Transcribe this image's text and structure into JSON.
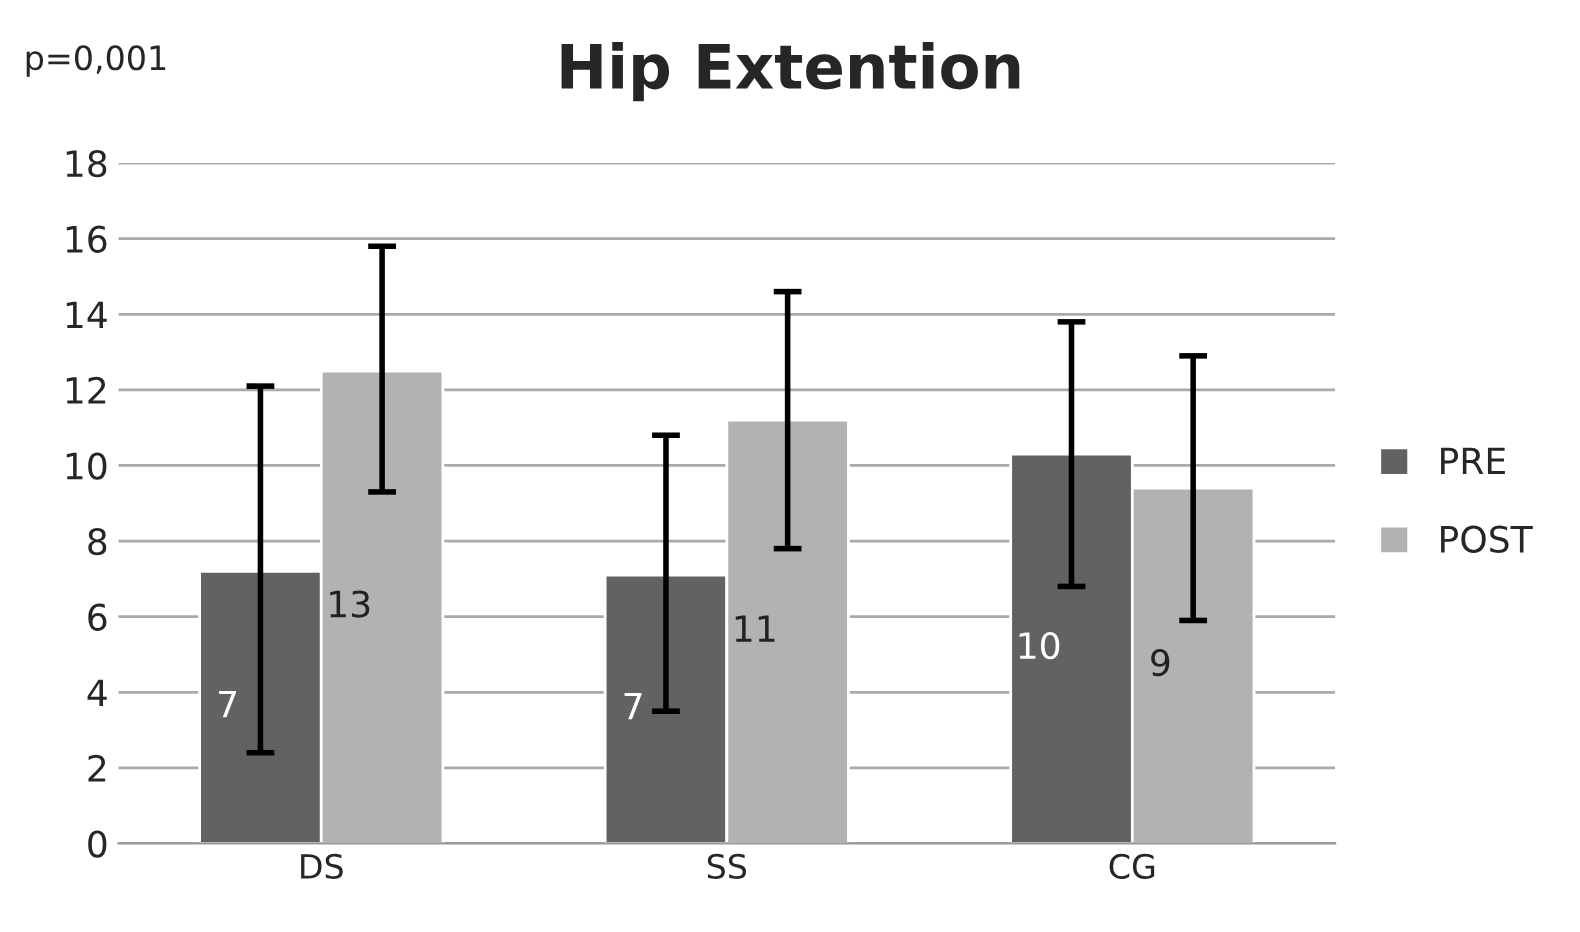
{
  "chart_data": {
    "type": "bar",
    "title": "Hip Extention",
    "annotations": [
      "p=0,001"
    ],
    "categories": [
      "DS",
      "SS",
      "CG"
    ],
    "series": [
      {
        "name": "PRE",
        "color": "#626262",
        "values": [
          7.2,
          7.1,
          10.3
        ],
        "errors": [
          [
            2.4,
            12.1
          ],
          [
            3.5,
            10.8
          ],
          [
            6.8,
            13.8
          ]
        ],
        "value_labels": [
          "7",
          "7",
          "10"
        ]
      },
      {
        "name": "POST",
        "color": "#b2b2b2",
        "values": [
          12.5,
          11.2,
          9.4
        ],
        "errors": [
          [
            9.3,
            15.8
          ],
          [
            7.8,
            14.6
          ],
          [
            5.9,
            12.9
          ]
        ],
        "value_labels": [
          "13",
          "11",
          "9"
        ]
      }
    ],
    "ylim": [
      0,
      18
    ],
    "yticks": [
      0,
      2,
      4,
      6,
      8,
      10,
      12,
      14,
      16,
      18
    ],
    "grid": "y",
    "legend": "right"
  }
}
